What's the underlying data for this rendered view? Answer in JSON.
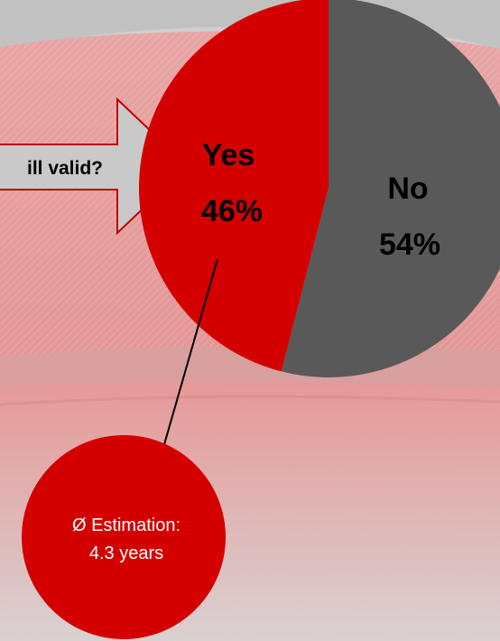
{
  "chart_data": {
    "type": "pie",
    "title": "",
    "slices": [
      {
        "label": "Yes",
        "value": 46,
        "display": "46%",
        "color": "#d40000"
      },
      {
        "label": "No",
        "value": 54,
        "display": "54%",
        "color": "#595959"
      }
    ],
    "question_arrow": {
      "text": "ill valid?",
      "fill": "#c9c9c9",
      "stroke": "#c00000"
    },
    "callout": {
      "line1": "Ø Estimation:",
      "line2": "4.3 years",
      "fill": "#d40000"
    }
  },
  "background": {
    "color": "#d9d9d9",
    "case_color": "#e79a9a"
  }
}
